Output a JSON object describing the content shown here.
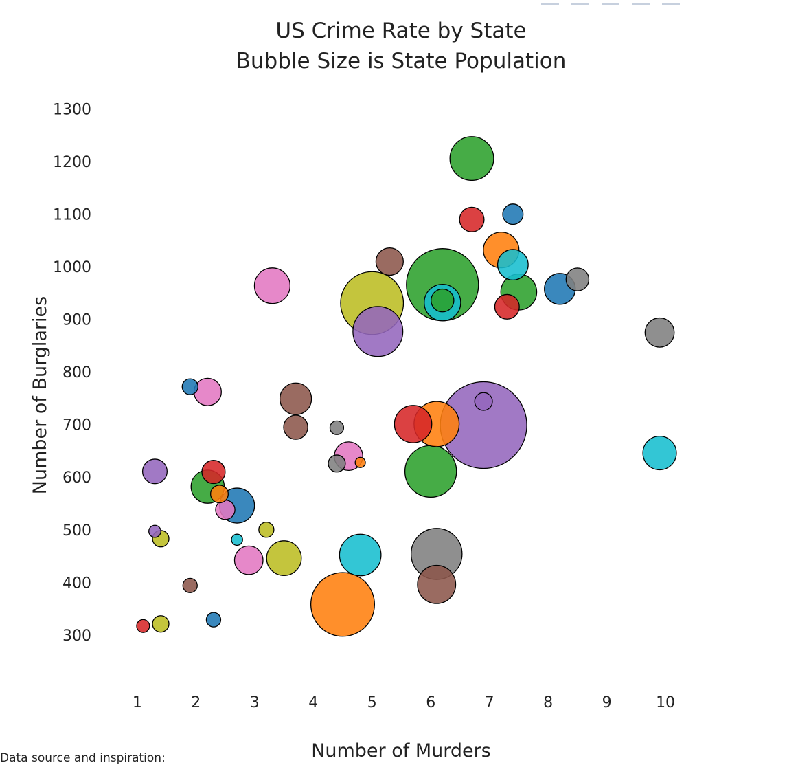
{
  "footnote": "Data source and inspiration:",
  "modebar": [
    "zoom-icon",
    "pan-icon",
    "zoom-in-icon",
    "zoom-out-icon",
    "autoscale-icon"
  ],
  "chart_data": {
    "type": "scatter",
    "title": [
      "US Crime Rate by State",
      "Bubble Size is State Population"
    ],
    "xlabel": "Number of Murders",
    "ylabel": "Number of Burglaries",
    "xlim": [
      0.3,
      10.9
    ],
    "ylim": [
      220,
      1310
    ],
    "xticks": [
      1,
      2,
      3,
      4,
      5,
      6,
      7,
      8,
      9,
      10
    ],
    "yticks": [
      300,
      400,
      500,
      600,
      700,
      800,
      900,
      1000,
      1100,
      1200,
      1300
    ],
    "size_note": "radius proportional to sqrt(population in millions)",
    "points": [
      {
        "x": 6.2,
        "y": 932,
        "pop": 6.4,
        "color": "#17becf"
      },
      {
        "x": 6.2,
        "y": 966,
        "pop": 25.0,
        "color": "#2ca02c"
      },
      {
        "x": 6.2,
        "y": 936,
        "pop": 2.5,
        "color": "#2ca02c"
      },
      {
        "x": 6.9,
        "y": 699,
        "pop": 36.0,
        "color": "#9467bd"
      },
      {
        "x": 6.9,
        "y": 744,
        "pop": 1.5,
        "color": "#9467bd"
      },
      {
        "x": 5.0,
        "y": 931,
        "pop": 19.0,
        "color": "#bcbd22"
      },
      {
        "x": 5.1,
        "y": 877,
        "pop": 12.0,
        "color": "#9467bd"
      },
      {
        "x": 4.5,
        "y": 358,
        "pop": 19.5,
        "color": "#ff7f0e"
      },
      {
        "x": 6.1,
        "y": 454,
        "pop": 12.5,
        "color": "#7f7f7f"
      },
      {
        "x": 6.1,
        "y": 396,
        "pop": 7.0,
        "color": "#8c564b"
      },
      {
        "x": 6.0,
        "y": 611,
        "pop": 12.8,
        "color": "#2ca02c"
      },
      {
        "x": 5.7,
        "y": 701,
        "pop": 6.7,
        "color": "#d62728"
      },
      {
        "x": 6.1,
        "y": 701,
        "pop": 9.8,
        "color": "#ff7f0e"
      },
      {
        "x": 4.8,
        "y": 452,
        "pop": 8.3,
        "color": "#17becf"
      },
      {
        "x": 6.7,
        "y": 1206,
        "pop": 9.2,
        "color": "#2ca02c"
      },
      {
        "x": 6.7,
        "y": 1090,
        "pop": 2.9,
        "color": "#d62728"
      },
      {
        "x": 7.4,
        "y": 1100,
        "pop": 2.0,
        "color": "#1f77b4"
      },
      {
        "x": 7.2,
        "y": 1032,
        "pop": 6.1,
        "color": "#ff7f0e"
      },
      {
        "x": 7.4,
        "y": 1004,
        "pop": 4.5,
        "color": "#17becf"
      },
      {
        "x": 7.5,
        "y": 952,
        "pop": 6.2,
        "color": "#2ca02c"
      },
      {
        "x": 7.3,
        "y": 924,
        "pop": 2.9,
        "color": "#d62728"
      },
      {
        "x": 8.2,
        "y": 958,
        "pop": 4.6,
        "color": "#1f77b4"
      },
      {
        "x": 8.5,
        "y": 976,
        "pop": 2.5,
        "color": "#7f7f7f"
      },
      {
        "x": 9.9,
        "y": 875,
        "pop": 4.1,
        "color": "#7f7f7f"
      },
      {
        "x": 9.9,
        "y": 646,
        "pop": 5.4,
        "color": "#17becf"
      },
      {
        "x": 5.3,
        "y": 1010,
        "pop": 3.6,
        "color": "#8c564b"
      },
      {
        "x": 3.3,
        "y": 964,
        "pop": 6.1,
        "color": "#e377c2"
      },
      {
        "x": 1.9,
        "y": 772,
        "pop": 1.2,
        "color": "#1f77b4"
      },
      {
        "x": 2.2,
        "y": 762,
        "pop": 3.6,
        "color": "#e377c2"
      },
      {
        "x": 3.7,
        "y": 749,
        "pop": 4.8,
        "color": "#8c564b"
      },
      {
        "x": 3.7,
        "y": 695,
        "pop": 2.8,
        "color": "#8c564b"
      },
      {
        "x": 4.4,
        "y": 694,
        "pop": 0.9,
        "color": "#7f7f7f"
      },
      {
        "x": 4.6,
        "y": 640,
        "pop": 3.9,
        "color": "#e377c2"
      },
      {
        "x": 4.8,
        "y": 628,
        "pop": 0.5,
        "color": "#ff7f0e"
      },
      {
        "x": 4.4,
        "y": 626,
        "pop": 1.4,
        "color": "#7f7f7f"
      },
      {
        "x": 1.3,
        "y": 611,
        "pop": 2.9,
        "color": "#9467bd"
      },
      {
        "x": 2.3,
        "y": 610,
        "pop": 2.6,
        "color": "#d62728"
      },
      {
        "x": 2.2,
        "y": 582,
        "pop": 5.3,
        "color": "#2ca02c"
      },
      {
        "x": 2.4,
        "y": 568,
        "pop": 1.5,
        "color": "#ff7f0e"
      },
      {
        "x": 2.7,
        "y": 546,
        "pop": 5.9,
        "color": "#1f77b4"
      },
      {
        "x": 2.5,
        "y": 538,
        "pop": 1.8,
        "color": "#e377c2"
      },
      {
        "x": 1.3,
        "y": 497,
        "pop": 0.7,
        "color": "#9467bd"
      },
      {
        "x": 1.4,
        "y": 483,
        "pop": 1.3,
        "color": "#bcbd22"
      },
      {
        "x": 3.2,
        "y": 500,
        "pop": 1.1,
        "color": "#bcbd22"
      },
      {
        "x": 2.7,
        "y": 481,
        "pop": 0.6,
        "color": "#17becf"
      },
      {
        "x": 2.9,
        "y": 442,
        "pop": 3.9,
        "color": "#e377c2"
      },
      {
        "x": 3.5,
        "y": 446,
        "pop": 5.8,
        "color": "#bcbd22"
      },
      {
        "x": 1.9,
        "y": 394,
        "pop": 1.0,
        "color": "#8c564b"
      },
      {
        "x": 2.3,
        "y": 329,
        "pop": 1.0,
        "color": "#1f77b4"
      },
      {
        "x": 1.1,
        "y": 317,
        "pop": 0.8,
        "color": "#d62728"
      },
      {
        "x": 1.4,
        "y": 321,
        "pop": 1.3,
        "color": "#bcbd22"
      }
    ]
  }
}
